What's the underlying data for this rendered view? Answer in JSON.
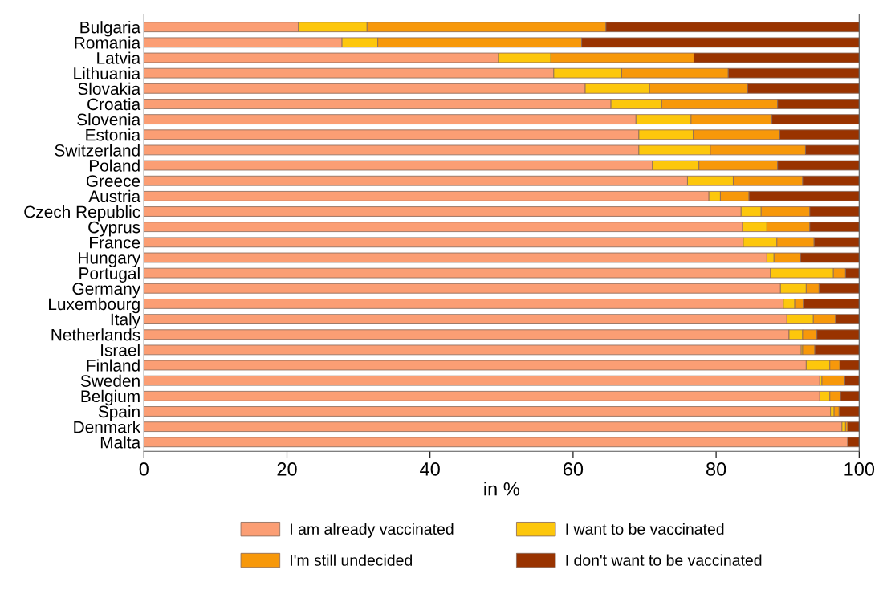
{
  "chart_data": {
    "type": "bar",
    "orientation": "horizontal",
    "stacked": true,
    "xlabel": "in %",
    "xlim": [
      0,
      100
    ],
    "xticks": [
      0,
      20,
      40,
      60,
      80,
      100
    ],
    "grid": false,
    "legend": "bottom",
    "categories": [
      "Bulgaria",
      "Romania",
      "Latvia",
      "Lithuania",
      "Slovakia",
      "Croatia",
      "Slovenia",
      "Estonia",
      "Switzerland",
      "Poland",
      "Greece",
      "Austria",
      "Czech Republic",
      "Cyprus",
      "France",
      "Hungary",
      "Portugal",
      "Germany",
      "Luxembourg",
      "Italy",
      "Netherlands",
      "Israel",
      "Finland",
      "Sweden",
      "Belgium",
      "Spain",
      "Denmark",
      "Malta"
    ],
    "series": [
      {
        "name": "I am already vaccinated",
        "color": "#fb9e74",
        "values": [
          21.6,
          27.7,
          49.6,
          57.3,
          61.7,
          65.3,
          68.8,
          69.2,
          69.2,
          71.1,
          76.0,
          79.0,
          83.5,
          83.7,
          83.8,
          87.1,
          87.6,
          89.0,
          89.4,
          89.9,
          90.2,
          91.9,
          92.6,
          94.5,
          94.5,
          96.0,
          97.6,
          98.4
        ]
      },
      {
        "name": "I want to be vaccinated",
        "color": "#fdc70c",
        "values": [
          9.6,
          5.0,
          7.3,
          9.5,
          9.0,
          7.1,
          7.7,
          7.6,
          10.0,
          6.5,
          6.4,
          1.6,
          2.8,
          3.4,
          4.7,
          1.0,
          8.8,
          3.6,
          1.6,
          3.7,
          1.9,
          0.2,
          3.3,
          0.3,
          1.4,
          0.5,
          0.5,
          0
        ]
      },
      {
        "name": "I'm still undecided",
        "color": "#f7980a",
        "values": [
          33.4,
          28.5,
          20.0,
          14.9,
          13.7,
          16.2,
          11.3,
          12.1,
          13.3,
          11.0,
          9.7,
          4.0,
          6.8,
          6.0,
          5.2,
          3.7,
          1.7,
          1.8,
          1.2,
          3.1,
          2.0,
          1.7,
          1.4,
          3.2,
          1.5,
          0.7,
          0.3,
          0
        ]
      },
      {
        "name": "I don't want to be vaccinated",
        "color": "#993300",
        "values": [
          35.4,
          38.8,
          23.1,
          18.3,
          15.6,
          11.4,
          12.2,
          11.1,
          7.5,
          11.4,
          7.9,
          15.4,
          6.9,
          6.9,
          6.3,
          8.2,
          1.9,
          5.6,
          7.8,
          3.3,
          5.9,
          6.2,
          2.7,
          2.0,
          2.6,
          2.8,
          1.6,
          1.6
        ]
      }
    ]
  }
}
